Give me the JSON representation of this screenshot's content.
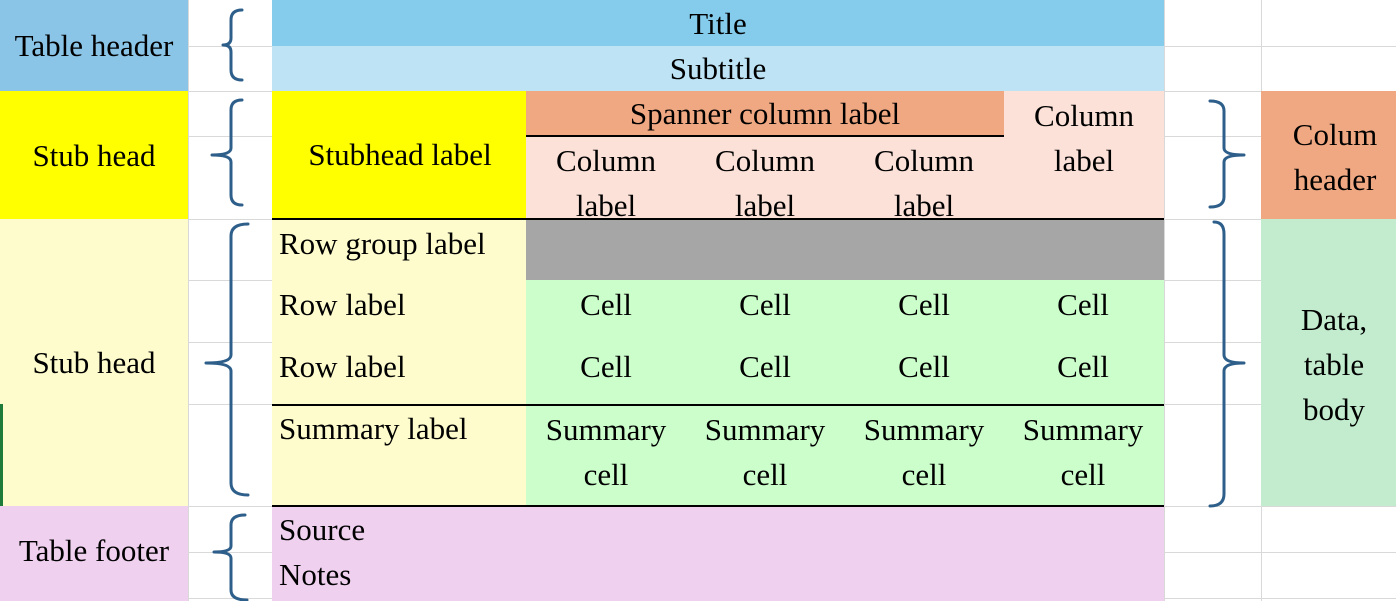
{
  "colors": {
    "table_header": "#8ac4e6",
    "title": "#85ccec",
    "subtitle": "#bde3f4",
    "stub_head": "#ffff00",
    "stubhead_label": "#ffff00",
    "spanner": "#f0a882",
    "column_label_area": "#fbe1d7",
    "column_header_tag": "#f0a882",
    "stub_body": "#fefccd",
    "row_group": "#a6a6a6",
    "cells": "#ccfecc",
    "data_body_tag": "#c2eccd",
    "footer": "#efd0ef",
    "brace": "#2e5f8a"
  },
  "left_labels": {
    "table_header": "Table header",
    "stub_head_top": "Stub head",
    "stub_head_body": "Stub head",
    "table_footer": "Table footer"
  },
  "header": {
    "title": "Title",
    "subtitle": "Subtitle"
  },
  "column_header": {
    "stubhead_label": "Stubhead label",
    "spanner_label": "Spanner column label",
    "spanned_column_labels": [
      "Column label",
      "Column label",
      "Column label"
    ],
    "standalone_column_label": "Column label"
  },
  "body": {
    "row_group_label": "Row group label",
    "rows": [
      {
        "label": "Row label",
        "cells": [
          "Cell",
          "Cell",
          "Cell",
          "Cell"
        ]
      },
      {
        "label": "Row label",
        "cells": [
          "Cell",
          "Cell",
          "Cell",
          "Cell"
        ]
      }
    ],
    "summary": {
      "label": "Summary label",
      "cells": [
        "Summary cell",
        "Summary cell",
        "Summary cell",
        "Summary cell"
      ]
    }
  },
  "footer": {
    "source": "Source",
    "notes": "Notes"
  },
  "right_labels": {
    "column_header": "Colum header",
    "data_body": "Data, table body"
  }
}
